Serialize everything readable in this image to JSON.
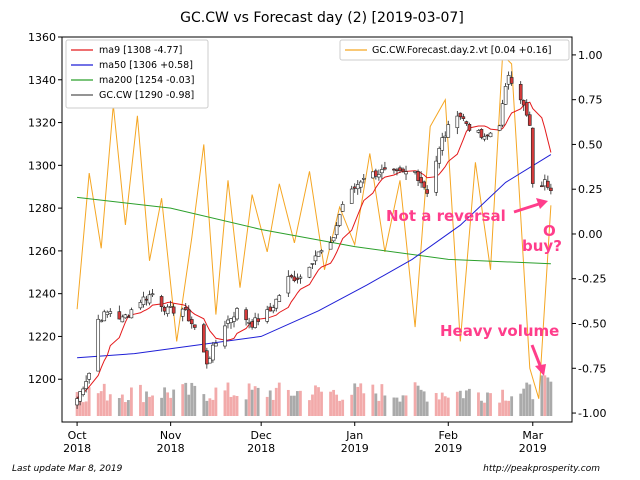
{
  "chart_data": {
    "type": "candlestick",
    "title": "GC.CW vs Forecast day (2)  [2019-03-07]",
    "x_ticks": [
      {
        "date": "2018-10-01",
        "line1": "Oct",
        "line2": "2018"
      },
      {
        "date": "2018-11-01",
        "line1": "Nov",
        "line2": "2018"
      },
      {
        "date": "2018-12-01",
        "line1": "Dec",
        "line2": "2018"
      },
      {
        "date": "2019-01-01",
        "line1": "Jan",
        "line2": "2019"
      },
      {
        "date": "2019-02-01",
        "line1": "Feb",
        "line2": "2019"
      },
      {
        "date": "2019-03-01",
        "line1": "Mar",
        "line2": "2019"
      }
    ],
    "x_range": [
      "2018-09-26",
      "2019-03-14"
    ],
    "y_left": {
      "range": [
        1180,
        1360
      ],
      "ticks": [
        1200,
        1220,
        1240,
        1260,
        1280,
        1300,
        1320,
        1340,
        1360
      ]
    },
    "y_right": {
      "range": [
        -1.05,
        1.1
      ],
      "ticks": [
        "1.00",
        "0.75",
        "0.50",
        "0.25",
        "0.00",
        "-0.25",
        "-0.50",
        "-0.75",
        "-1.00"
      ]
    },
    "close_anchors": [
      [
        "2018-10-01",
        1191
      ],
      [
        "2018-10-05",
        1203
      ],
      [
        "2018-10-08",
        1228
      ],
      [
        "2018-10-12",
        1232
      ],
      [
        "2018-10-16",
        1228
      ],
      [
        "2018-10-22",
        1237
      ],
      [
        "2018-10-26",
        1240
      ],
      [
        "2018-10-31",
        1232
      ],
      [
        "2018-11-05",
        1233
      ],
      [
        "2018-11-09",
        1224
      ],
      [
        "2018-11-13",
        1208
      ],
      [
        "2018-11-19",
        1226
      ],
      [
        "2018-11-23",
        1232
      ],
      [
        "2018-11-28",
        1226
      ],
      [
        "2018-12-04",
        1232
      ],
      [
        "2018-12-10",
        1247
      ],
      [
        "2018-12-14",
        1248
      ],
      [
        "2018-12-19",
        1258
      ],
      [
        "2018-12-24",
        1262
      ],
      [
        "2018-12-28",
        1282
      ],
      [
        "2019-01-04",
        1295
      ],
      [
        "2019-01-10",
        1297
      ],
      [
        "2019-01-15",
        1296
      ],
      [
        "2019-01-21",
        1297
      ],
      [
        "2019-01-25",
        1288
      ],
      [
        "2019-01-30",
        1312
      ],
      [
        "2019-02-04",
        1325
      ],
      [
        "2019-02-08",
        1318
      ],
      [
        "2019-02-13",
        1312
      ],
      [
        "2019-02-18",
        1320
      ],
      [
        "2019-02-21",
        1343
      ],
      [
        "2019-02-25",
        1332
      ],
      [
        "2019-02-28",
        1318
      ],
      [
        "2019-03-01",
        1290
      ],
      [
        "2019-03-05",
        1292
      ],
      [
        "2019-03-07",
        1290
      ]
    ],
    "forecast_anchors": [
      [
        "2018-10-01",
        -0.42
      ],
      [
        "2018-10-05",
        0.34
      ],
      [
        "2018-10-09",
        -0.08
      ],
      [
        "2018-10-13",
        0.72
      ],
      [
        "2018-10-17",
        0.05
      ],
      [
        "2018-10-21",
        0.66
      ],
      [
        "2018-10-25",
        -0.15
      ],
      [
        "2018-10-29",
        0.2
      ],
      [
        "2018-11-03",
        -0.6
      ],
      [
        "2018-11-08",
        -0.02
      ],
      [
        "2018-11-12",
        0.5
      ],
      [
        "2018-11-16",
        -0.45
      ],
      [
        "2018-11-20",
        0.3
      ],
      [
        "2018-11-24",
        -0.3
      ],
      [
        "2018-11-28",
        0.22
      ],
      [
        "2018-12-03",
        -0.1
      ],
      [
        "2018-12-07",
        0.28
      ],
      [
        "2018-12-12",
        -0.05
      ],
      [
        "2018-12-17",
        0.35
      ],
      [
        "2018-12-22",
        -0.2
      ],
      [
        "2018-12-27",
        0.15
      ],
      [
        "2019-01-01",
        -0.06
      ],
      [
        "2019-01-06",
        0.45
      ],
      [
        "2019-01-11",
        -0.1
      ],
      [
        "2019-01-16",
        0.3
      ],
      [
        "2019-01-21",
        -0.52
      ],
      [
        "2019-01-26",
        0.6
      ],
      [
        "2019-01-31",
        0.75
      ],
      [
        "2019-02-05",
        -0.6
      ],
      [
        "2019-02-10",
        0.4
      ],
      [
        "2019-02-15",
        -0.2
      ],
      [
        "2019-02-19",
        1.0
      ],
      [
        "2019-02-22",
        0.95
      ],
      [
        "2019-02-25",
        0.1
      ],
      [
        "2019-02-28",
        -0.75
      ],
      [
        "2019-03-03",
        -0.92
      ],
      [
        "2019-03-07",
        0.16
      ]
    ],
    "ma50_anchors": [
      [
        "2018-10-01",
        1210
      ],
      [
        "2018-10-20",
        1212
      ],
      [
        "2018-11-10",
        1216
      ],
      [
        "2018-12-01",
        1220
      ],
      [
        "2018-12-20",
        1232
      ],
      [
        "2019-01-05",
        1244
      ],
      [
        "2019-01-20",
        1256
      ],
      [
        "2019-02-05",
        1272
      ],
      [
        "2019-02-20",
        1292
      ],
      [
        "2019-03-07",
        1305
      ]
    ],
    "ma200_anchors": [
      [
        "2018-10-01",
        1285
      ],
      [
        "2018-11-01",
        1280
      ],
      [
        "2018-12-01",
        1270
      ],
      [
        "2019-01-01",
        1262
      ],
      [
        "2019-02-01",
        1256
      ],
      [
        "2019-03-07",
        1254
      ]
    ],
    "legend_left": {
      "placement": "top-left",
      "entries": [
        {
          "label": "ma9 [1308 -4.77]",
          "color": "#e41a1c"
        },
        {
          "label": "ma50 [1306 +0.58]",
          "color": "#1f1fd6"
        },
        {
          "label": "ma200 [1254 -0.03]",
          "color": "#2ca02c"
        },
        {
          "label": "GC.CW [1290 -0.98]",
          "color": "#555555"
        }
      ]
    },
    "legend_right": {
      "placement": "top-right",
      "entries": [
        {
          "label": "GC.CW.Forecast.day.2.vt [0.04 +0.16]",
          "color": "#f5a623"
        }
      ]
    },
    "annotations": [
      {
        "text": "Not a reversal",
        "color": "#ff3d8b"
      },
      {
        "text": "O",
        "color": "#ff3d8b"
      },
      {
        "text": "buy?",
        "color": "#ff3d8b"
      },
      {
        "text": "Heavy volume",
        "color": "#ff3d8b"
      }
    ],
    "colors": {
      "up": "#ffffff",
      "down": "#d43a3a",
      "vol_up": "#f2aaaa",
      "vol_down": "#aaaaaa",
      "forecast": "#f5a623"
    }
  },
  "footer": {
    "left": "Last update Mar  8, 2019",
    "right": "http://peakprosperity.com"
  }
}
